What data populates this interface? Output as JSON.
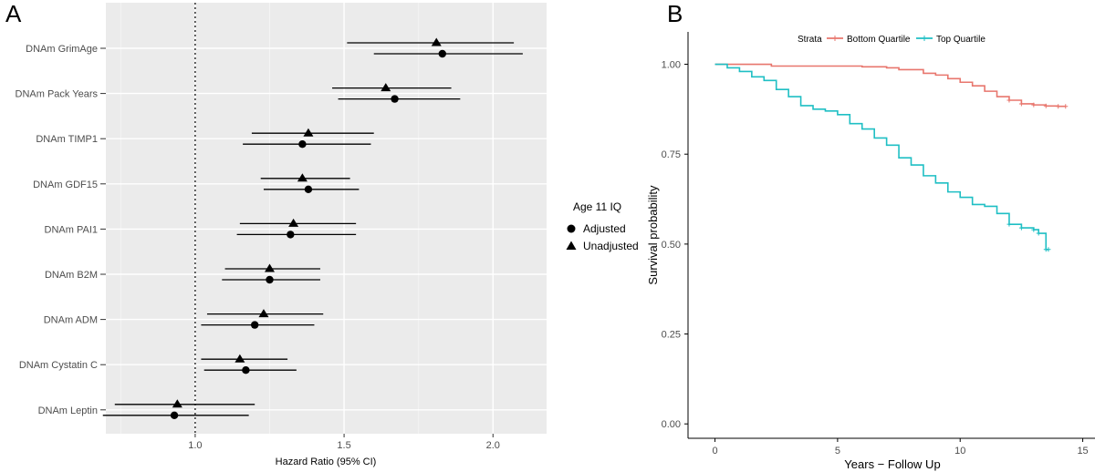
{
  "chart_data": [
    {
      "panel": "A",
      "type": "forest",
      "title": "",
      "xlabel": "Hazard Ratio (95% CI)",
      "ylabel": "",
      "xlim": [
        0.7,
        2.18
      ],
      "xticks": [
        1.0,
        1.5,
        2.0
      ],
      "xtick_labels": [
        "1.0",
        "1.5",
        "2.0"
      ],
      "reference_line": 1.0,
      "legend": {
        "title": "Age 11 IQ",
        "position": "right",
        "entries": [
          {
            "label": "Adjusted",
            "shape": "circle"
          },
          {
            "label": "Unadjusted",
            "shape": "triangle"
          }
        ]
      },
      "categories": [
        "DNAm GrimAge",
        "DNAm Pack Years",
        "DNAm TIMP1",
        "DNAm GDF15",
        "DNAm PAI1",
        "DNAm B2M",
        "DNAm ADM",
        "DNAm Cystatin C",
        "DNAm Leptin"
      ],
      "series": [
        {
          "name": "Unadjusted",
          "shape": "triangle",
          "hr": [
            1.81,
            1.64,
            1.38,
            1.36,
            1.33,
            1.25,
            1.23,
            1.15,
            0.94
          ],
          "lower": [
            1.51,
            1.46,
            1.19,
            1.22,
            1.15,
            1.1,
            1.04,
            1.02,
            0.73
          ],
          "upper": [
            2.07,
            1.86,
            1.6,
            1.52,
            1.54,
            1.42,
            1.43,
            1.31,
            1.2
          ]
        },
        {
          "name": "Adjusted",
          "shape": "circle",
          "hr": [
            1.83,
            1.67,
            1.36,
            1.38,
            1.32,
            1.25,
            1.2,
            1.17,
            0.93
          ],
          "lower": [
            1.6,
            1.48,
            1.16,
            1.23,
            1.14,
            1.09,
            1.02,
            1.03,
            0.69
          ],
          "upper": [
            2.1,
            1.89,
            1.59,
            1.55,
            1.54,
            1.42,
            1.4,
            1.34,
            1.18
          ]
        }
      ]
    },
    {
      "panel": "B",
      "type": "line",
      "subtype": "kaplan-meier",
      "title": "",
      "xlabel": "Years − Follow Up",
      "ylabel": "Survival probability",
      "xlim": [
        -1.1,
        15.5
      ],
      "ylim": [
        -0.04,
        1.09
      ],
      "xticks": [
        0,
        5,
        10,
        15
      ],
      "xtick_labels": [
        "0",
        "5",
        "10",
        "15"
      ],
      "yticks": [
        0,
        0.25,
        0.5,
        0.75,
        1.0
      ],
      "ytick_labels": [
        "0.00",
        "0.25",
        "0.50",
        "0.75",
        "1.00"
      ],
      "legend": {
        "title": "Strata",
        "position": "top"
      },
      "series": [
        {
          "name": "Bottom Quartile",
          "color": "#E8766D",
          "x": [
            0,
            2,
            2.3,
            4,
            6,
            7,
            7.5,
            8.5,
            9,
            9.5,
            10,
            10.5,
            11,
            11.5,
            12,
            12.5,
            13,
            13.5,
            14,
            14.3
          ],
          "y": [
            1.0,
            1.0,
            0.995,
            0.995,
            0.993,
            0.99,
            0.985,
            0.975,
            0.97,
            0.96,
            0.95,
            0.94,
            0.925,
            0.91,
            0.9,
            0.89,
            0.887,
            0.884,
            0.883,
            0.883
          ]
        },
        {
          "name": "Top Quartile",
          "color": "#1FBFC4",
          "x": [
            0,
            0.5,
            1,
            1.5,
            2,
            2.5,
            3,
            3.5,
            4,
            4.5,
            5,
            5.5,
            6,
            6.5,
            7,
            7.5,
            8,
            8.5,
            9,
            9.5,
            10,
            10.5,
            11,
            11.5,
            12,
            12.5,
            13,
            13.2,
            13.5,
            13.6
          ],
          "y": [
            1.0,
            0.99,
            0.98,
            0.965,
            0.955,
            0.93,
            0.91,
            0.885,
            0.875,
            0.87,
            0.86,
            0.835,
            0.82,
            0.795,
            0.775,
            0.74,
            0.72,
            0.69,
            0.67,
            0.645,
            0.63,
            0.61,
            0.605,
            0.585,
            0.555,
            0.545,
            0.54,
            0.53,
            0.485,
            0.485
          ]
        }
      ]
    }
  ]
}
